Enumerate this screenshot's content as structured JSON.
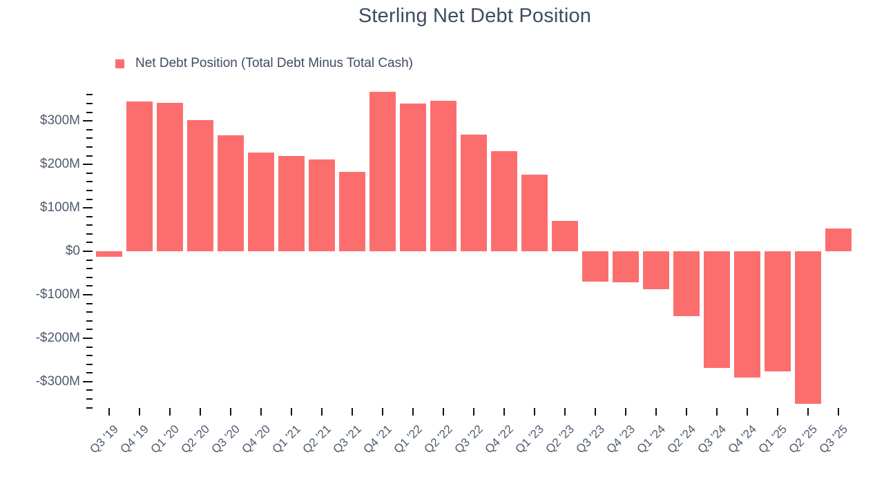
{
  "title": "Sterling Net Debt Position",
  "legend": {
    "label": "Net Debt Position (Total Debt Minus Total Cash)"
  },
  "colors": {
    "bar": "#fc6e6e",
    "title_text": "#3e4c63",
    "axis_text": "#4e5a6e",
    "tick": "#111111",
    "background": "#ffffff"
  },
  "chart_data": {
    "type": "bar",
    "title": "Sterling Net Debt Position",
    "series_name": "Net Debt Position (Total Debt Minus Total Cash)",
    "unit": "USD millions",
    "categories": [
      "Q3 '19",
      "Q4 '19",
      "Q1 '20",
      "Q2 '20",
      "Q3 '20",
      "Q4 '20",
      "Q1 '21",
      "Q2 '21",
      "Q3 '21",
      "Q4 '21",
      "Q1 '22",
      "Q2 '22",
      "Q3 '22",
      "Q4 '22",
      "Q1 '23",
      "Q2 '23",
      "Q3 '23",
      "Q4 '23",
      "Q1 '24",
      "Q2 '24",
      "Q3 '24",
      "Q4 '24",
      "Q1 '25",
      "Q2 '25",
      "Q3 '25"
    ],
    "values": [
      -12,
      345,
      341,
      302,
      267,
      227,
      220,
      212,
      183,
      367,
      340,
      346,
      268,
      231,
      177,
      70,
      -70,
      -72,
      -88,
      -150,
      -268,
      -291,
      -277,
      -351,
      52
    ],
    "xlabel": "",
    "ylabel": "",
    "ylim": [
      -375,
      375
    ],
    "y_tick_values": [
      300,
      200,
      100,
      0,
      -100,
      -200,
      -300
    ],
    "y_tick_labels": [
      "$300M",
      "$200M",
      "$100M",
      "$0",
      "-$100M",
      "-$200M",
      "-$300M"
    ],
    "y_minor_tick_step": 20,
    "y_minor_tick_range": [
      -360,
      360
    ],
    "grid": false,
    "legend_position": "top-left"
  }
}
